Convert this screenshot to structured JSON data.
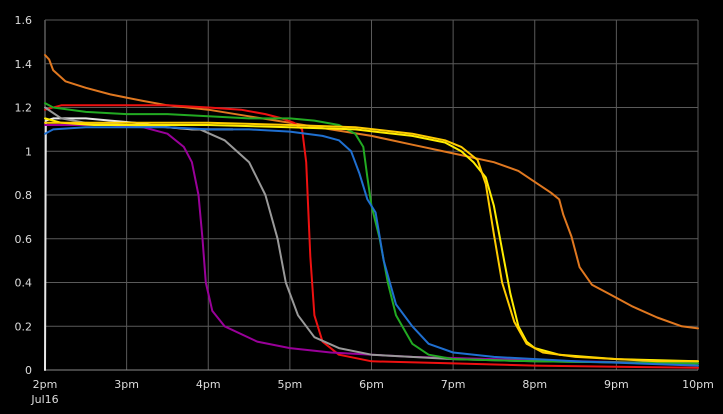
{
  "chart_data": {
    "type": "line",
    "title": "",
    "xlabel": "",
    "ylabel": "",
    "grid": true,
    "legend": "none",
    "xlim": [
      "2pm",
      "10pm"
    ],
    "ylim": [
      0,
      1.6
    ],
    "x_ticks": [
      "2pm",
      "3pm",
      "4pm",
      "5pm",
      "6pm",
      "7pm",
      "8pm",
      "9pm",
      "10pm"
    ],
    "x_tick_sublabel": "Jul16",
    "y_ticks": [
      "0",
      "0.2",
      "0.4",
      "0.6",
      "0.8",
      "1",
      "1.2",
      "1.4",
      "1.6"
    ],
    "x_unit": "hours since 2pm Jul16",
    "series": [
      {
        "color": "#e07820",
        "points": [
          [
            0,
            1.44
          ],
          [
            0.05,
            1.42
          ],
          [
            0.1,
            1.37
          ],
          [
            0.25,
            1.32
          ],
          [
            0.5,
            1.29
          ],
          [
            0.8,
            1.26
          ],
          [
            1.2,
            1.23
          ],
          [
            1.5,
            1.21
          ],
          [
            2.0,
            1.19
          ],
          [
            2.5,
            1.16
          ],
          [
            3.0,
            1.13
          ],
          [
            3.5,
            1.1
          ],
          [
            4.0,
            1.07
          ],
          [
            4.5,
            1.03
          ],
          [
            5.0,
            0.99
          ],
          [
            5.5,
            0.95
          ],
          [
            5.8,
            0.91
          ],
          [
            6.0,
            0.86
          ],
          [
            6.2,
            0.81
          ],
          [
            6.3,
            0.78
          ],
          [
            6.35,
            0.71
          ],
          [
            6.45,
            0.61
          ],
          [
            6.55,
            0.47
          ],
          [
            6.7,
            0.39
          ],
          [
            6.9,
            0.35
          ],
          [
            7.2,
            0.29
          ],
          [
            7.5,
            0.24
          ],
          [
            7.8,
            0.2
          ],
          [
            8.0,
            0.19
          ]
        ]
      },
      {
        "color": "#e8e8e8",
        "points": [
          [
            0,
            0
          ],
          [
            0.01,
            1.14
          ],
          [
            0.1,
            1.15
          ],
          [
            0.3,
            1.15
          ],
          [
            0.5,
            1.15
          ],
          [
            0.8,
            1.14
          ],
          [
            1.1,
            1.13
          ],
          [
            1.5,
            1.11
          ],
          [
            1.8,
            1.1
          ],
          [
            2.0,
            1.1
          ],
          [
            2.3,
            1.1
          ]
        ]
      },
      {
        "color": "#ee1111",
        "points": [
          [
            0,
            1.19
          ],
          [
            0.2,
            1.21
          ],
          [
            0.5,
            1.21
          ],
          [
            1.0,
            1.21
          ],
          [
            1.5,
            1.21
          ],
          [
            2.0,
            1.2
          ],
          [
            2.4,
            1.19
          ],
          [
            2.7,
            1.17
          ],
          [
            2.9,
            1.15
          ],
          [
            3.05,
            1.13
          ],
          [
            3.15,
            1.1
          ],
          [
            3.2,
            0.95
          ],
          [
            3.25,
            0.52
          ],
          [
            3.3,
            0.25
          ],
          [
            3.4,
            0.13
          ],
          [
            3.6,
            0.07
          ],
          [
            4.0,
            0.04
          ],
          [
            5.0,
            0.03
          ],
          [
            6.0,
            0.02
          ],
          [
            7.0,
            0.015
          ],
          [
            8.0,
            0.01
          ]
        ]
      },
      {
        "color": "#990099",
        "points": [
          [
            0,
            1.12
          ],
          [
            0.3,
            1.12
          ],
          [
            0.8,
            1.12
          ],
          [
            1.2,
            1.11
          ],
          [
            1.5,
            1.08
          ],
          [
            1.7,
            1.02
          ],
          [
            1.8,
            0.95
          ],
          [
            1.88,
            0.8
          ],
          [
            1.93,
            0.6
          ],
          [
            1.97,
            0.4
          ],
          [
            2.05,
            0.27
          ],
          [
            2.2,
            0.2
          ],
          [
            2.6,
            0.13
          ],
          [
            3.0,
            0.1
          ],
          [
            3.5,
            0.08
          ],
          [
            4.5,
            0.06
          ],
          [
            5.5,
            0.05
          ],
          [
            6.5,
            0.04
          ],
          [
            8.0,
            0.03
          ]
        ]
      },
      {
        "color": "#999999",
        "points": [
          [
            0,
            1.2
          ],
          [
            0.2,
            1.15
          ],
          [
            0.5,
            1.13
          ],
          [
            1.0,
            1.12
          ],
          [
            1.5,
            1.11
          ],
          [
            1.9,
            1.1
          ],
          [
            2.2,
            1.05
          ],
          [
            2.5,
            0.95
          ],
          [
            2.7,
            0.8
          ],
          [
            2.85,
            0.6
          ],
          [
            2.95,
            0.4
          ],
          [
            3.1,
            0.25
          ],
          [
            3.3,
            0.15
          ],
          [
            3.6,
            0.1
          ],
          [
            4.0,
            0.07
          ],
          [
            5.0,
            0.05
          ],
          [
            6.0,
            0.04
          ],
          [
            8.0,
            0.03
          ]
        ]
      },
      {
        "color": "#22aa22",
        "points": [
          [
            0,
            1.22
          ],
          [
            0.1,
            1.2
          ],
          [
            0.5,
            1.18
          ],
          [
            1.0,
            1.17
          ],
          [
            1.5,
            1.17
          ],
          [
            2.0,
            1.16
          ],
          [
            2.5,
            1.15
          ],
          [
            3.0,
            1.15
          ],
          [
            3.3,
            1.14
          ],
          [
            3.6,
            1.12
          ],
          [
            3.8,
            1.08
          ],
          [
            3.9,
            1.02
          ],
          [
            3.95,
            0.88
          ],
          [
            4.0,
            0.75
          ],
          [
            4.1,
            0.6
          ],
          [
            4.2,
            0.4
          ],
          [
            4.3,
            0.25
          ],
          [
            4.5,
            0.12
          ],
          [
            4.7,
            0.07
          ],
          [
            5.0,
            0.05
          ],
          [
            6.0,
            0.04
          ],
          [
            8.0,
            0.03
          ]
        ]
      },
      {
        "color": "#1f6fd0",
        "points": [
          [
            0,
            1.08
          ],
          [
            0.1,
            1.1
          ],
          [
            0.5,
            1.11
          ],
          [
            1.0,
            1.11
          ],
          [
            1.5,
            1.11
          ],
          [
            2.0,
            1.1
          ],
          [
            2.5,
            1.1
          ],
          [
            3.0,
            1.09
          ],
          [
            3.4,
            1.07
          ],
          [
            3.6,
            1.05
          ],
          [
            3.75,
            1.0
          ],
          [
            3.85,
            0.9
          ],
          [
            3.95,
            0.78
          ],
          [
            4.05,
            0.72
          ],
          [
            4.15,
            0.5
          ],
          [
            4.3,
            0.3
          ],
          [
            4.5,
            0.2
          ],
          [
            4.7,
            0.12
          ],
          [
            5.0,
            0.08
          ],
          [
            5.5,
            0.06
          ],
          [
            6.5,
            0.04
          ],
          [
            8.0,
            0.02
          ]
        ]
      },
      {
        "color": "#ffee00",
        "points": [
          [
            0,
            1.15
          ],
          [
            0.2,
            1.13
          ],
          [
            0.6,
            1.12
          ],
          [
            1.0,
            1.12
          ],
          [
            1.5,
            1.12
          ],
          [
            2.0,
            1.12
          ],
          [
            3.0,
            1.11
          ],
          [
            3.8,
            1.1
          ],
          [
            4.5,
            1.07
          ],
          [
            4.9,
            1.04
          ],
          [
            5.1,
            1.0
          ],
          [
            5.25,
            0.95
          ],
          [
            5.4,
            0.88
          ],
          [
            5.5,
            0.75
          ],
          [
            5.6,
            0.55
          ],
          [
            5.7,
            0.35
          ],
          [
            5.8,
            0.2
          ],
          [
            5.9,
            0.13
          ],
          [
            6.0,
            0.1
          ],
          [
            6.3,
            0.07
          ],
          [
            7.0,
            0.05
          ],
          [
            8.0,
            0.04
          ]
        ]
      },
      {
        "color": "#ffcc00",
        "points": [
          [
            0,
            1.13
          ],
          [
            0.3,
            1.13
          ],
          [
            1.0,
            1.13
          ],
          [
            1.5,
            1.13
          ],
          [
            2.0,
            1.13
          ],
          [
            3.0,
            1.12
          ],
          [
            3.8,
            1.11
          ],
          [
            4.5,
            1.08
          ],
          [
            4.9,
            1.05
          ],
          [
            5.1,
            1.02
          ],
          [
            5.3,
            0.96
          ],
          [
            5.4,
            0.85
          ],
          [
            5.5,
            0.62
          ],
          [
            5.6,
            0.4
          ],
          [
            5.75,
            0.22
          ],
          [
            5.9,
            0.12
          ],
          [
            6.1,
            0.08
          ],
          [
            6.5,
            0.06
          ],
          [
            7.5,
            0.04
          ],
          [
            8.0,
            0.04
          ]
        ]
      }
    ]
  }
}
